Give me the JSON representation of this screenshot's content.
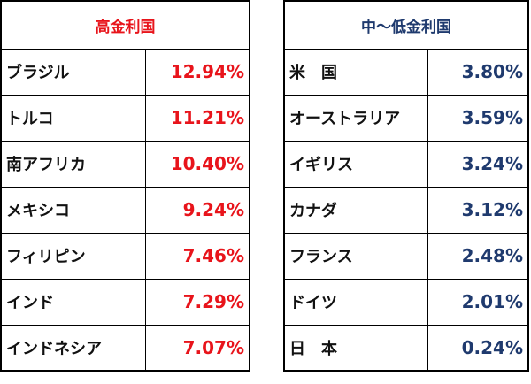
{
  "high_rate": {
    "title": "高金利国",
    "rows": [
      {
        "country": "ブラジル",
        "rate": "12.94%"
      },
      {
        "country": "トルコ",
        "rate": "11.21%"
      },
      {
        "country": "南アフリカ",
        "rate": "10.40%"
      },
      {
        "country": "メキシコ",
        "rate": "9.24%"
      },
      {
        "country": "フィリピン",
        "rate": "7.46%"
      },
      {
        "country": "インド",
        "rate": "7.29%"
      },
      {
        "country": "インドネシア",
        "rate": "7.07%"
      }
    ]
  },
  "low_rate": {
    "title": "中～低金利国",
    "rows": [
      {
        "country": "米　国",
        "rate": "3.80%"
      },
      {
        "country": "オーストラリア",
        "rate": "3.59%"
      },
      {
        "country": "イギリス",
        "rate": "3.24%"
      },
      {
        "country": "カナダ",
        "rate": "3.12%"
      },
      {
        "country": "フランス",
        "rate": "2.48%"
      },
      {
        "country": "ドイツ",
        "rate": "2.01%"
      },
      {
        "country": "日　本",
        "rate": "0.24%"
      }
    ]
  },
  "colors": {
    "high": "#e8141b",
    "low": "#1f3a6e"
  }
}
